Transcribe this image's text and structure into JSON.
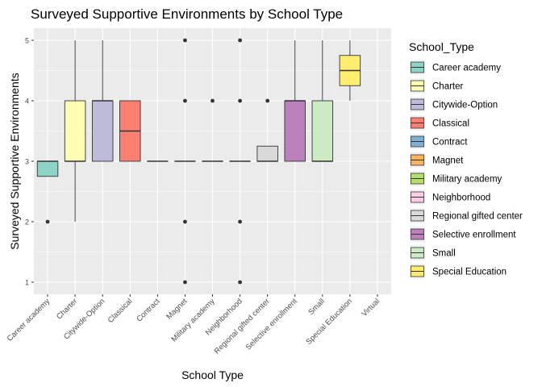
{
  "chart_data": {
    "type": "boxplot",
    "title": "Surveyed Supportive Environments by School Type",
    "xlabel": "School Type",
    "ylabel": "Surveyed Supportive Environments",
    "ylim": [
      0.8,
      5.2
    ],
    "yticks": [
      1,
      2,
      3,
      4,
      5
    ],
    "grid": true,
    "legend_position": "right",
    "legend_title": "School_Type",
    "categories": [
      "Career academy",
      "Charter",
      "Citywide-Option",
      "Classical",
      "Contract",
      "Magnet",
      "Military academy",
      "Neighborhood",
      "Regional gifted center",
      "Selective enrollment",
      "Small",
      "Special Education",
      "Virtual"
    ],
    "boxes": [
      {
        "category": "Career academy",
        "min": 2.75,
        "q1": 2.75,
        "median": 3,
        "q3": 3,
        "max": 3,
        "outliers": [
          2
        ],
        "color": "#8DD3C7"
      },
      {
        "category": "Charter",
        "min": 2,
        "q1": 3,
        "median": 3,
        "q3": 4,
        "max": 5,
        "outliers": [],
        "color": "#FFFFB3"
      },
      {
        "category": "Citywide-Option",
        "min": 3,
        "q1": 3,
        "median": 4,
        "q3": 4,
        "max": 5,
        "outliers": [],
        "color": "#BEBADA"
      },
      {
        "category": "Classical",
        "min": 3,
        "q1": 3,
        "median": 3.5,
        "q3": 4,
        "max": 4,
        "outliers": [],
        "color": "#FB8072"
      },
      {
        "category": "Contract",
        "min": 3,
        "q1": 3,
        "median": 3,
        "q3": 3,
        "max": 3,
        "outliers": [],
        "color": "#80B1D3"
      },
      {
        "category": "Magnet",
        "min": 3,
        "q1": 3,
        "median": 3,
        "q3": 3,
        "max": 3,
        "outliers": [
          1,
          2,
          4,
          5
        ],
        "color": "#FDB462"
      },
      {
        "category": "Military academy",
        "min": 3,
        "q1": 3,
        "median": 3,
        "q3": 3,
        "max": 3,
        "outliers": [
          4
        ],
        "color": "#B3DE69"
      },
      {
        "category": "Neighborhood",
        "min": 3,
        "q1": 3,
        "median": 3,
        "q3": 3,
        "max": 3,
        "outliers": [
          1,
          2,
          4,
          5
        ],
        "color": "#FCCDE5"
      },
      {
        "category": "Regional gifted center",
        "min": 3,
        "q1": 3,
        "median": 3,
        "q3": 3.25,
        "max": 3.25,
        "outliers": [
          4
        ],
        "color": "#D9D9D9"
      },
      {
        "category": "Selective enrollment",
        "min": 3,
        "q1": 3,
        "median": 4,
        "q3": 4,
        "max": 5,
        "outliers": [],
        "color": "#BC80BD"
      },
      {
        "category": "Small",
        "min": 3,
        "q1": 3,
        "median": 3,
        "q3": 4,
        "max": 5,
        "outliers": [],
        "color": "#CCEBC5"
      },
      {
        "category": "Special Education",
        "min": 4,
        "q1": 4.25,
        "median": 4.5,
        "q3": 4.75,
        "max": 5,
        "outliers": [],
        "color": "#FFED6F"
      }
    ],
    "legend": [
      {
        "label": "Career academy",
        "color": "#8DD3C7"
      },
      {
        "label": "Charter",
        "color": "#FFFFB3"
      },
      {
        "label": "Citywide-Option",
        "color": "#BEBADA"
      },
      {
        "label": "Classical",
        "color": "#FB8072"
      },
      {
        "label": "Contract",
        "color": "#80B1D3"
      },
      {
        "label": "Magnet",
        "color": "#FDB462"
      },
      {
        "label": "Military academy",
        "color": "#B3DE69"
      },
      {
        "label": "Neighborhood",
        "color": "#FCCDE5"
      },
      {
        "label": "Regional gifted center",
        "color": "#D9D9D9"
      },
      {
        "label": "Selective enrollment",
        "color": "#BC80BD"
      },
      {
        "label": "Small",
        "color": "#CCEBC5"
      },
      {
        "label": "Special Education",
        "color": "#FFED6F"
      }
    ],
    "colors": {
      "panel": "#EBEBEB",
      "grid_major": "#FFFFFF",
      "line": "#333333",
      "text": "#000000",
      "tick_text": "#4D4D4D"
    }
  }
}
